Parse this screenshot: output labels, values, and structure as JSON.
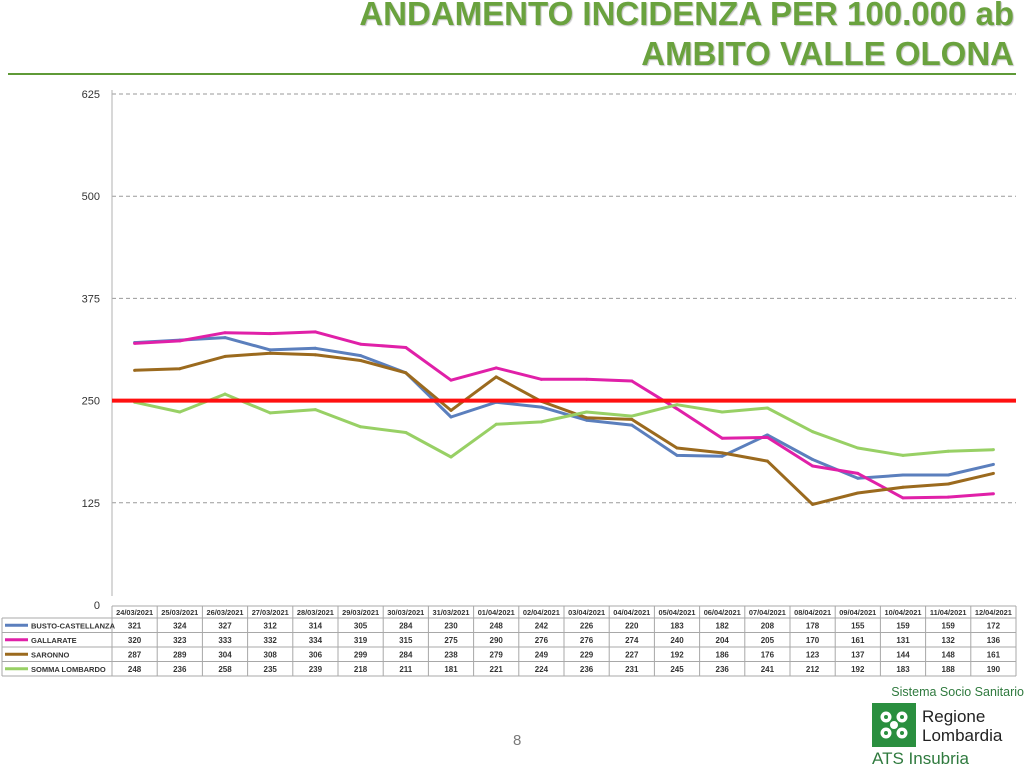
{
  "header": {
    "title_line1": "ANDAMENTO INCIDENZA PER 100.000 ab",
    "title_line2": "AMBITO VALLE OLONA"
  },
  "chart_data": {
    "type": "line",
    "title": "ANDAMENTO INCIDENZA PER 100.000 ab AMBITO VALLE OLONA",
    "ylim": [
      0,
      625
    ],
    "yticks": [
      "0",
      "125",
      "250",
      "375",
      "500",
      "625"
    ],
    "grid": true,
    "legend_placement": "data-table-below",
    "categories": [
      "24/03/2021",
      "25/03/2021",
      "26/03/2021",
      "27/03/2021",
      "28/03/2021",
      "29/03/2021",
      "30/03/2021",
      "31/03/2021",
      "01/04/2021",
      "02/04/2021",
      "03/04/2021",
      "04/04/2021",
      "05/04/2021",
      "06/04/2021",
      "07/04/2021",
      "08/04/2021",
      "09/04/2021",
      "10/04/2021",
      "11/04/2021",
      "12/04/2021"
    ],
    "threshold": {
      "value": 250,
      "color": "#ff1010"
    },
    "series": [
      {
        "name": "BUSTO-CASTELLANZA",
        "color": "#5b7fbd",
        "values": [
          321,
          324,
          327,
          312,
          314,
          305,
          284,
          230,
          248,
          242,
          226,
          220,
          183,
          182,
          208,
          178,
          155,
          159,
          159,
          172
        ]
      },
      {
        "name": "GALLARATE",
        "color": "#e020a8",
        "values": [
          320,
          323,
          333,
          332,
          334,
          319,
          315,
          275,
          290,
          276,
          276,
          274,
          240,
          204,
          205,
          170,
          161,
          131,
          132,
          136
        ]
      },
      {
        "name": "SARONNO",
        "color": "#9b6a1e",
        "values": [
          287,
          289,
          304,
          308,
          306,
          299,
          284,
          238,
          279,
          249,
          229,
          227,
          192,
          186,
          176,
          123,
          137,
          144,
          148,
          161
        ]
      },
      {
        "name": "SOMMA LOMBARDO",
        "color": "#98d065",
        "values": [
          248,
          236,
          258,
          235,
          239,
          218,
          211,
          181,
          221,
          224,
          236,
          231,
          245,
          236,
          241,
          212,
          192,
          183,
          188,
          190
        ]
      }
    ]
  },
  "footer": {
    "page_number": "8",
    "org_line": "Sistema Socio Sanitario",
    "logo_name_line1": "Regione",
    "logo_name_line2": "Lombardia",
    "logo_sub": "ATS Insubria",
    "logo_color": "#2a8f3f"
  }
}
